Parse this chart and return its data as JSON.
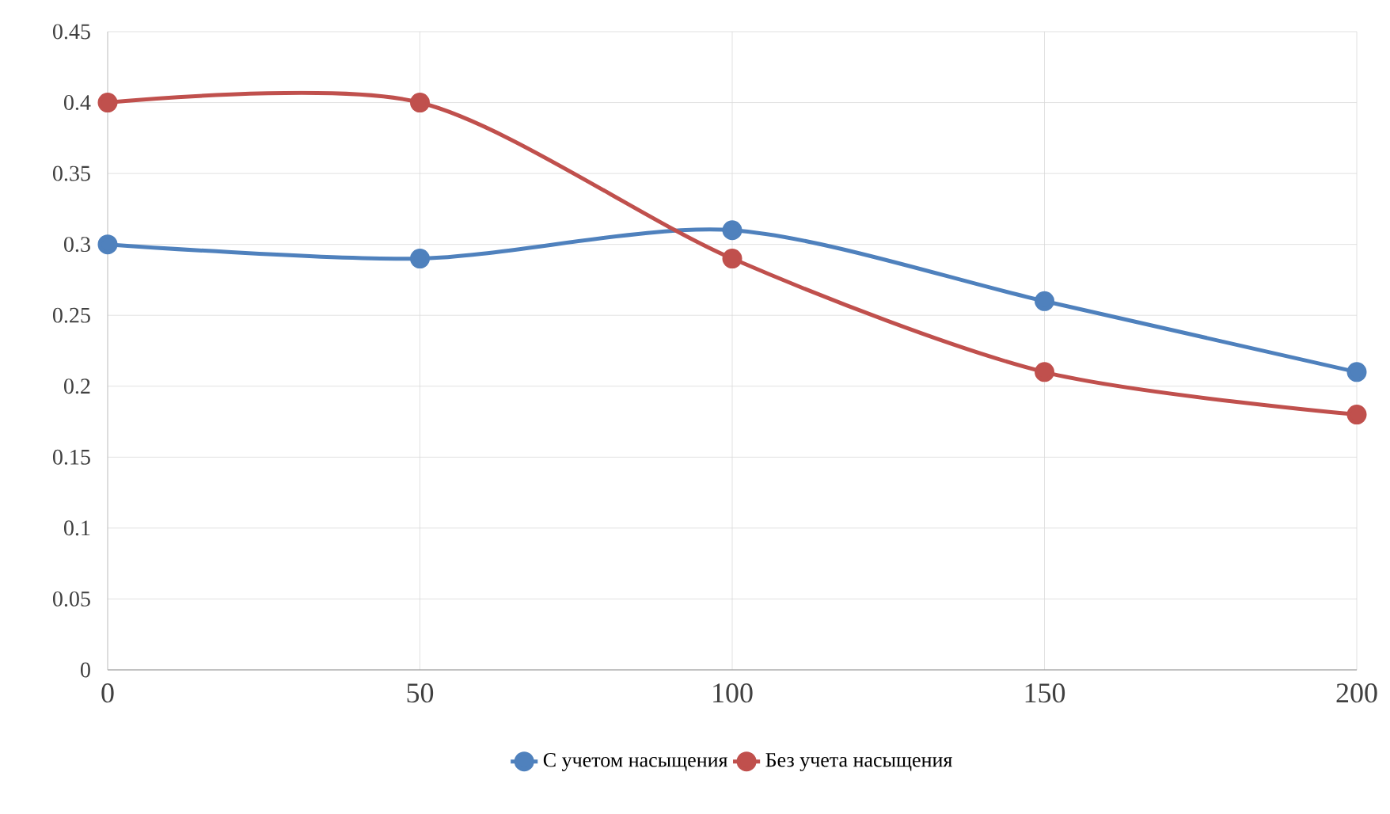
{
  "chart_data": {
    "type": "line",
    "x": [
      0,
      50,
      100,
      150,
      200
    ],
    "series": [
      {
        "name": "С учетом насыщения",
        "color": "#4f81bd",
        "values": [
          0.3,
          0.29,
          0.31,
          0.26,
          0.21
        ]
      },
      {
        "name": "Без учета насыщения",
        "color": "#c0504d",
        "values": [
          0.4,
          0.4,
          0.29,
          0.21,
          0.18
        ]
      }
    ],
    "xlim": [
      0,
      200
    ],
    "xticks": [
      0,
      50,
      100,
      150,
      200
    ],
    "ylim": [
      0,
      0.45
    ],
    "yticks": [
      0,
      0.05,
      0.1,
      0.15,
      0.2,
      0.25,
      0.3,
      0.35,
      0.4,
      0.45
    ],
    "grid": true,
    "legend": "bottom",
    "marker": "circle",
    "line_style": "solid"
  }
}
